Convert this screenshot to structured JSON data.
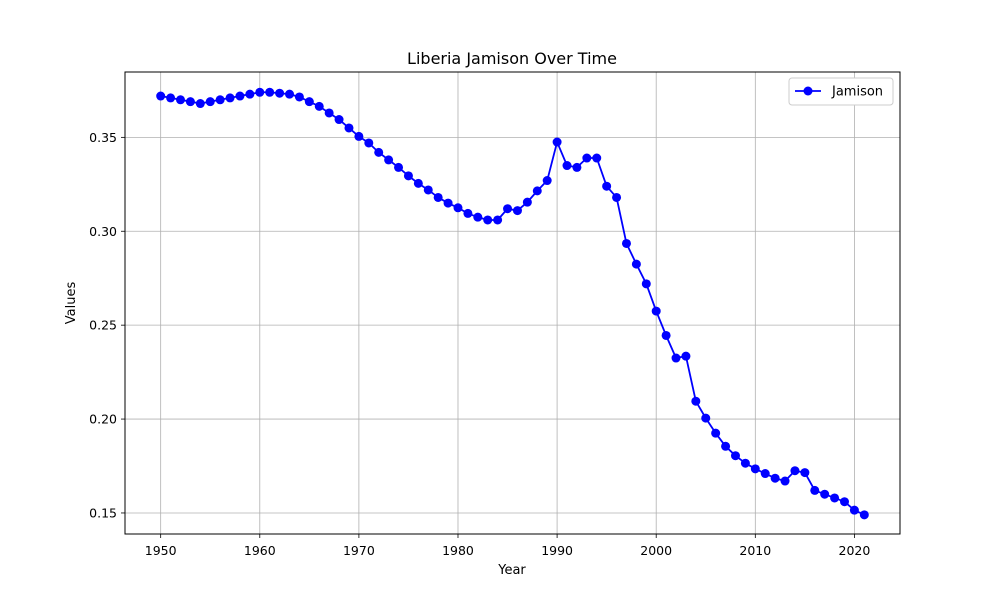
{
  "chart_data": {
    "type": "line",
    "title": "Liberia Jamison Over Time",
    "xlabel": "Year",
    "ylabel": "Values",
    "xlim": [
      1946.4,
      2024.6
    ],
    "ylim": [
      0.1388,
      0.3848
    ],
    "x_ticks": [
      "1950",
      "1960",
      "1970",
      "1980",
      "1990",
      "2000",
      "2010",
      "2020"
    ],
    "y_ticks": [
      "0.15",
      "0.20",
      "0.25",
      "0.30",
      "0.35"
    ],
    "grid": true,
    "legend": {
      "placement": "top-right",
      "entries": [
        "Jamison"
      ]
    },
    "x": [
      1950,
      1951,
      1952,
      1953,
      1954,
      1955,
      1956,
      1957,
      1958,
      1959,
      1960,
      1961,
      1962,
      1963,
      1964,
      1965,
      1966,
      1967,
      1968,
      1969,
      1970,
      1971,
      1972,
      1973,
      1974,
      1975,
      1976,
      1977,
      1978,
      1979,
      1980,
      1981,
      1982,
      1983,
      1984,
      1985,
      1986,
      1987,
      1988,
      1989,
      1990,
      1991,
      1992,
      1993,
      1994,
      1995,
      1996,
      1997,
      1998,
      1999,
      2000,
      2001,
      2002,
      2003,
      2004,
      2005,
      2006,
      2007,
      2008,
      2009,
      2010,
      2011,
      2012,
      2013,
      2014,
      2015,
      2016,
      2017,
      2018,
      2019,
      2020,
      2021
    ],
    "series": [
      {
        "name": "Jamison",
        "color": "#0000ff",
        "values": [
          0.372,
          0.371,
          0.37,
          0.369,
          0.368,
          0.369,
          0.37,
          0.371,
          0.372,
          0.373,
          0.374,
          0.374,
          0.3735,
          0.373,
          0.3715,
          0.369,
          0.3665,
          0.363,
          0.3595,
          0.355,
          0.3505,
          0.347,
          0.342,
          0.338,
          0.334,
          0.3295,
          0.3255,
          0.322,
          0.318,
          0.315,
          0.3125,
          0.3095,
          0.3075,
          0.306,
          0.306,
          0.312,
          0.311,
          0.3155,
          0.3215,
          0.327,
          0.3475,
          0.335,
          0.334,
          0.339,
          0.339,
          0.324,
          0.318,
          0.2935,
          0.2825,
          0.272,
          0.2575,
          0.2445,
          0.2325,
          0.2335,
          0.2095,
          0.2005,
          0.1925,
          0.1855,
          0.1805,
          0.1765,
          0.1735,
          0.171,
          0.1685,
          0.167,
          0.1725,
          0.1715,
          0.162,
          0.16,
          0.158,
          0.156,
          0.1515,
          0.149
        ]
      }
    ]
  }
}
